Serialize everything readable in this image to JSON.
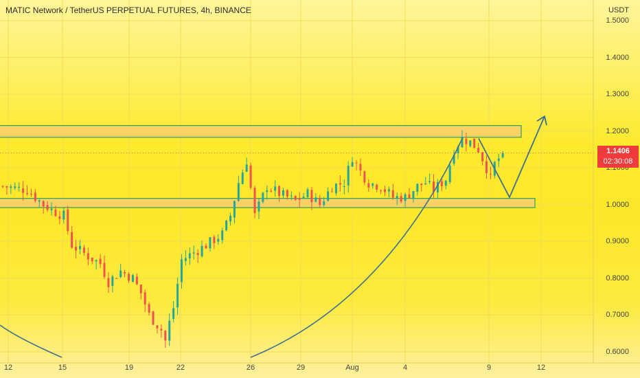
{
  "title": "MATIC Network / TetherUS PERPETUAL FUTURES, 4h, BINANCE",
  "colors": {
    "up": "#26a69a",
    "down": "#ef5350",
    "zone": "#f9cf6a",
    "zone_border": "#2f9e55",
    "arrow": "#3d6f8f",
    "price_tag": "#ef3b3b"
  },
  "chart_data": {
    "type": "candlestick",
    "symbol": "MATIC Network / TetherUS PERPETUAL FUTURES",
    "interval": "4h",
    "exchange": "BINANCE",
    "unit_label": "USDT",
    "ylim": [
      0.58,
      1.52
    ],
    "y_ticks": [
      "1.5000",
      "1.4000",
      "1.3000",
      "1.2000",
      "1.1000",
      "1.0000",
      "0.9000",
      "0.8000",
      "0.7000",
      "0.6000"
    ],
    "x_ticks": [
      "12",
      "15",
      "19",
      "22",
      "26",
      "29",
      "Aug",
      "4",
      "9",
      "12"
    ],
    "current_price": "1.1406",
    "countdown": "02:30:08",
    "path_points": [
      [
        0,
        1.05
      ],
      [
        6,
        1.04
      ],
      [
        10,
        1.0
      ],
      [
        13,
        0.98
      ],
      [
        15,
        0.97
      ],
      [
        17,
        0.89
      ],
      [
        21,
        0.86
      ],
      [
        24,
        0.84
      ],
      [
        26,
        0.79
      ],
      [
        29,
        0.82
      ],
      [
        32,
        0.8
      ],
      [
        34,
        0.76
      ],
      [
        36,
        0.7
      ],
      [
        39,
        0.66
      ],
      [
        40,
        0.63
      ],
      [
        41,
        0.68
      ],
      [
        42,
        0.72
      ],
      [
        44,
        0.85
      ],
      [
        47,
        0.87
      ],
      [
        50,
        0.89
      ],
      [
        54,
        0.92
      ],
      [
        56,
        0.97
      ],
      [
        58,
        1.06
      ],
      [
        60,
        1.12
      ],
      [
        62,
        0.97
      ],
      [
        65,
        1.05
      ],
      [
        68,
        1.03
      ],
      [
        72,
        1.01
      ],
      [
        75,
        1.03
      ],
      [
        78,
        1.0
      ],
      [
        81,
        1.05
      ],
      [
        84,
        1.06
      ],
      [
        86,
        1.13
      ],
      [
        88,
        1.09
      ],
      [
        90,
        1.06
      ],
      [
        93,
        1.05
      ],
      [
        96,
        1.02
      ],
      [
        99,
        1.02
      ],
      [
        102,
        1.05
      ],
      [
        104,
        1.06
      ],
      [
        106,
        1.04
      ],
      [
        109,
        1.07
      ],
      [
        111,
        1.15
      ],
      [
        113,
        1.18
      ],
      [
        115,
        1.17
      ],
      [
        117,
        1.15
      ],
      [
        119,
        1.1
      ],
      [
        120,
        1.07
      ],
      [
        121,
        1.11
      ],
      [
        123,
        1.14
      ]
    ],
    "resistance_zone": [
      1.183,
      1.215
    ],
    "support_zone": [
      0.992,
      1.017
    ],
    "projection": [
      1.18,
      1.02,
      1.24
    ]
  }
}
